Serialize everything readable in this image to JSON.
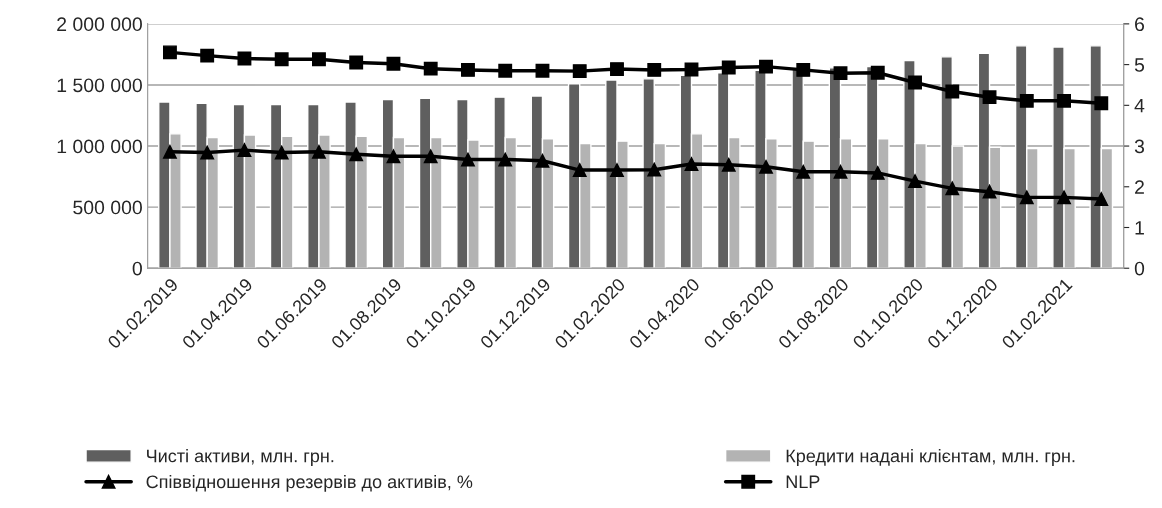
{
  "chart_data": {
    "type": "bar",
    "categories": [
      "01.02.2019",
      null,
      "01.04.2019",
      null,
      "01.06.2019",
      null,
      "01.08.2019",
      null,
      "01.10.2019",
      null,
      "01.12.2019",
      null,
      "01.02.2020",
      null,
      "01.04.2020",
      null,
      "01.06.2020",
      null,
      "01.08.2020",
      null,
      "01.10.2020",
      null,
      "01.12.2020",
      null,
      "01.02.2021",
      null
    ],
    "series": [
      {
        "name": "Чисті активи, млн. грн.",
        "color": "#5f5f5f",
        "values": [
          1360000,
          1350000,
          1340000,
          1340000,
          1340000,
          1360000,
          1380000,
          1390000,
          1380000,
          1400000,
          1410000,
          1510000,
          1540000,
          1550000,
          1580000,
          1600000,
          1620000,
          1640000,
          1640000,
          1650000,
          1700000,
          1730000,
          1760000,
          1820000,
          1810000,
          1820000
        ]
      },
      {
        "name": "Кредити надані клієнтам, млн. грн.",
        "color": "#b3b3b3",
        "values": [
          1100000,
          1070000,
          1090000,
          1080000,
          1090000,
          1080000,
          1070000,
          1070000,
          1050000,
          1070000,
          1060000,
          1020000,
          1040000,
          1020000,
          1100000,
          1070000,
          1060000,
          1040000,
          1060000,
          1060000,
          1020000,
          1000000,
          990000,
          980000,
          980000,
          980000
        ]
      },
      {
        "name": "Співвідношення резервів до активів, %",
        "type": "line",
        "axis": "y2",
        "marker": "triangle",
        "color": "#000000",
        "values": [
          2.86,
          2.84,
          2.9,
          2.84,
          2.86,
          2.8,
          2.75,
          2.75,
          2.67,
          2.67,
          2.64,
          2.41,
          2.41,
          2.42,
          2.56,
          2.54,
          2.49,
          2.37,
          2.37,
          2.34,
          2.14,
          1.96,
          1.88,
          1.74,
          1.74,
          1.7
        ]
      },
      {
        "name": "NLP",
        "type": "line",
        "axis": "y2",
        "marker": "square",
        "color": "#000000",
        "values": [
          5.3,
          5.22,
          5.15,
          5.13,
          5.13,
          5.05,
          5.02,
          4.9,
          4.87,
          4.85,
          4.85,
          4.84,
          4.89,
          4.87,
          4.88,
          4.93,
          4.95,
          4.87,
          4.79,
          4.8,
          4.56,
          4.34,
          4.2,
          4.11,
          4.11,
          4.05
        ]
      }
    ],
    "ylim": [
      0,
      2000000
    ],
    "yticks": [
      0,
      {
        "value": 500000,
        "label": "500 000"
      },
      {
        "value": 1000000,
        "label": "1 000 000"
      },
      {
        "value": 1500000,
        "label": "1 500 000"
      },
      {
        "value": 2000000,
        "label": "2 000 000"
      }
    ],
    "y2lim": [
      0,
      6
    ],
    "y2ticks": [
      0,
      1,
      2,
      3,
      4,
      5,
      6
    ],
    "grid": "y",
    "legend": "bottom"
  }
}
